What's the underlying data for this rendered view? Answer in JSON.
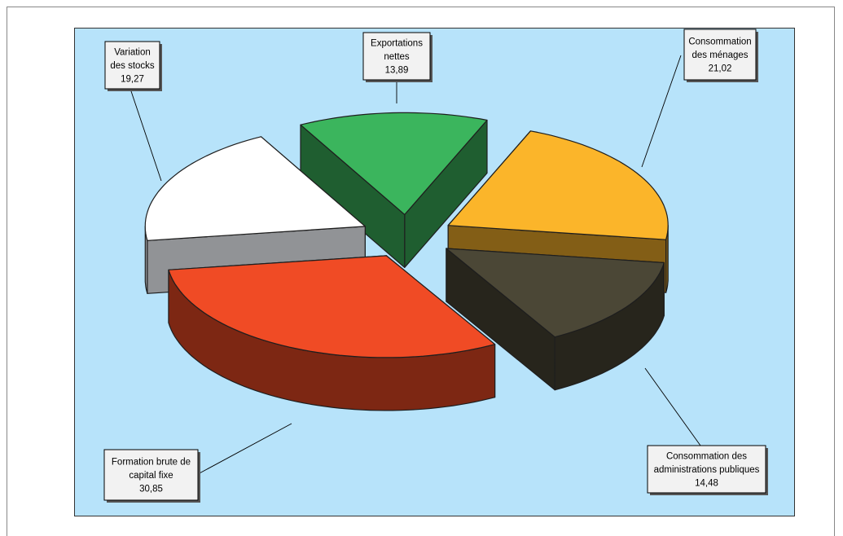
{
  "chart_data": {
    "type": "pie",
    "style": "3d-exploded",
    "title": "",
    "plot_background": "#b7e3fa",
    "slices": [
      {
        "label": [
          "Consommation",
          "des ménages"
        ],
        "value": 21.02,
        "value_text": "21,02",
        "color": "#fbb52a"
      },
      {
        "label": [
          "Consommation des",
          "administrations publiques"
        ],
        "value": 14.48,
        "value_text": "14,48",
        "color": "#4b4736"
      },
      {
        "label": [
          "Formation brute de",
          "capital fixe"
        ],
        "value": 30.85,
        "value_text": "30,85",
        "color": "#f04b25"
      },
      {
        "label": [
          "Variation",
          "des stocks"
        ],
        "value": 19.27,
        "value_text": "19,27",
        "color": "#ffffff"
      },
      {
        "label": [
          "Exportations",
          "nettes"
        ],
        "value": 13.89,
        "value_text": "13,89",
        "color": "#3bb55d"
      }
    ]
  }
}
